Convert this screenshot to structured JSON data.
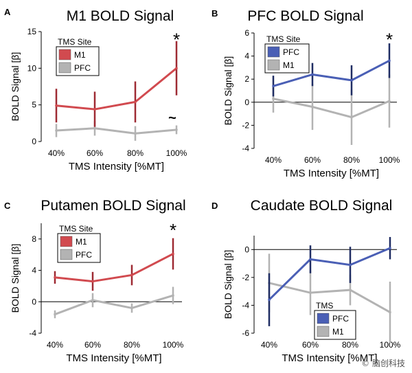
{
  "colors": {
    "m1": "#d14a4f",
    "pfc_blue": "#4a5fb5",
    "grey": "#b3b3b3",
    "axis": "#000000"
  },
  "x_axis_label": "TMS Intensity [%MT]",
  "y_axis_label": "BOLD Signal [β]",
  "watermark": "© 脑创科技",
  "chart_data": [
    {
      "panel": "A",
      "type": "line",
      "title": "M1 BOLD Signal",
      "categories": [
        "40%",
        "60%",
        "80%",
        "100%"
      ],
      "xlabel": "TMS Intensity [%MT]",
      "ylabel": "BOLD Signal [β]",
      "ylim": [
        0,
        15
      ],
      "yticks": [
        "0",
        "5",
        "10",
        "15"
      ],
      "zero_line": false,
      "legend": {
        "title": "TMS Site",
        "position": "top-left"
      },
      "series": [
        {
          "name": "M1",
          "color": "#d14a4f",
          "values": [
            4.9,
            4.4,
            5.4,
            10.0
          ],
          "err": [
            2.3,
            2.4,
            2.8,
            3.7
          ]
        },
        {
          "name": "PFC",
          "color": "#b3b3b3",
          "values": [
            1.5,
            1.8,
            1.1,
            1.6
          ],
          "err": [
            0.9,
            1.0,
            1.0,
            0.6
          ]
        }
      ],
      "annotations": [
        {
          "text": "*",
          "category": "100%",
          "value": 14.0
        },
        {
          "text": "~",
          "category": "100%",
          "value": 3.0
        }
      ]
    },
    {
      "panel": "B",
      "type": "line",
      "title": "PFC BOLD Signal",
      "categories": [
        "40%",
        "60%",
        "80%",
        "100%"
      ],
      "xlabel": "TMS Intensity [%MT]",
      "ylabel": "BOLD Signal [β]",
      "ylim": [
        -4,
        6
      ],
      "yticks": [
        "-4",
        "-2",
        "0",
        "2",
        "4",
        "6"
      ],
      "zero_line": true,
      "legend": {
        "title": "TMS Site",
        "position": "top-left"
      },
      "series": [
        {
          "name": "PFC",
          "color": "#4a5fb5",
          "values": [
            1.4,
            2.4,
            1.9,
            3.6
          ],
          "err": [
            0.9,
            1.0,
            1.3,
            1.5
          ]
        },
        {
          "name": "M1",
          "color": "#b3b3b3",
          "values": [
            0.3,
            -0.4,
            -1.3,
            0.1
          ],
          "err": [
            1.2,
            2.0,
            2.4,
            2.3
          ]
        }
      ],
      "annotations": [
        {
          "text": "*",
          "category": "100%",
          "value": 5.5
        }
      ]
    },
    {
      "panel": "C",
      "type": "line",
      "title": "Putamen BOLD Signal",
      "categories": [
        "40%",
        "60%",
        "80%",
        "100%"
      ],
      "xlabel": "TMS Intensity [%MT]",
      "ylabel": "BOLD Signal [β]",
      "ylim": [
        -4,
        10
      ],
      "yticks": [
        "-4",
        "0",
        "4",
        "8"
      ],
      "zero_line": true,
      "legend": {
        "title": "TMS Site",
        "position": "top-left"
      },
      "series": [
        {
          "name": "M1",
          "color": "#d14a4f",
          "values": [
            3.1,
            2.6,
            3.4,
            6.1
          ],
          "err": [
            0.8,
            1.2,
            1.3,
            2.0
          ]
        },
        {
          "name": "PFC",
          "color": "#b3b3b3",
          "values": [
            -1.6,
            0.2,
            -0.8,
            0.8
          ],
          "err": [
            0.5,
            0.9,
            0.6,
            1.1
          ]
        }
      ],
      "annotations": [
        {
          "text": "*",
          "category": "100%",
          "value": 9.2
        }
      ]
    },
    {
      "panel": "D",
      "type": "line",
      "title": "Caudate BOLD Signal",
      "categories": [
        "40%",
        "60%",
        "80%",
        "100%"
      ],
      "xlabel": "TMS Intensity [%MT]",
      "ylabel": "BOLD Signal [β]",
      "ylim": [
        -6,
        1
      ],
      "yticks": [
        "-6",
        "-4",
        "-2",
        "0"
      ],
      "zero_line": true,
      "legend": {
        "title": "TMS",
        "position": "bottom-right"
      },
      "series": [
        {
          "name": "PFC",
          "color": "#4a5fb5",
          "values": [
            -3.6,
            -0.7,
            -1.1,
            0.1
          ],
          "err": [
            1.9,
            1.0,
            1.3,
            0.8
          ]
        },
        {
          "name": "M1",
          "color": "#b3b3b3",
          "values": [
            -2.4,
            -3.1,
            -2.9,
            -4.5
          ],
          "err": [
            2.1,
            1.6,
            1.1,
            2.2
          ]
        }
      ],
      "annotations": []
    }
  ]
}
